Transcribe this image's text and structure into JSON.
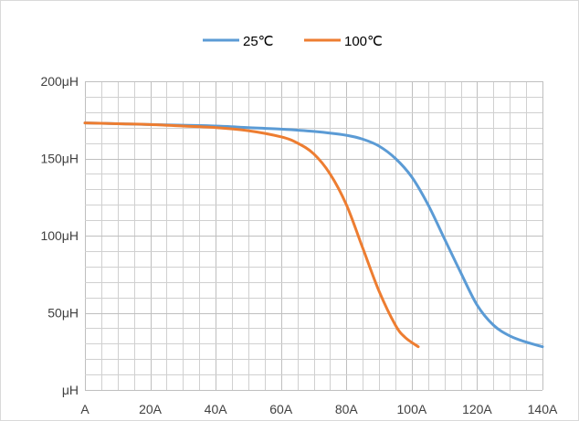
{
  "chart_data": {
    "type": "line",
    "title": "",
    "xlabel": "",
    "ylabel": "",
    "xlim": [
      0,
      140
    ],
    "ylim": [
      0,
      200
    ],
    "grid": true,
    "legend_position": "top",
    "x_ticks": [
      {
        "value": 0,
        "label": "A"
      },
      {
        "value": 20,
        "label": "20A"
      },
      {
        "value": 40,
        "label": "40A"
      },
      {
        "value": 60,
        "label": "60A"
      },
      {
        "value": 80,
        "label": "80A"
      },
      {
        "value": 100,
        "label": "100A"
      },
      {
        "value": 120,
        "label": "120A"
      },
      {
        "value": 140,
        "label": "140A"
      }
    ],
    "y_ticks": [
      {
        "value": 0,
        "label": "μH"
      },
      {
        "value": 50,
        "label": "50μH"
      },
      {
        "value": 100,
        "label": "100μH"
      },
      {
        "value": 150,
        "label": "150μH"
      },
      {
        "value": 200,
        "label": "200μH"
      }
    ],
    "series": [
      {
        "name": "25℃",
        "color": "#5b9bd5",
        "points": [
          [
            0,
            173
          ],
          [
            10,
            172.5
          ],
          [
            20,
            172
          ],
          [
            30,
            171.5
          ],
          [
            40,
            171
          ],
          [
            50,
            170
          ],
          [
            60,
            169
          ],
          [
            70,
            167.5
          ],
          [
            80,
            165
          ],
          [
            85,
            162.5
          ],
          [
            90,
            158
          ],
          [
            95,
            150
          ],
          [
            100,
            138
          ],
          [
            105,
            120
          ],
          [
            110,
            98
          ],
          [
            115,
            76
          ],
          [
            120,
            55
          ],
          [
            125,
            42
          ],
          [
            130,
            35
          ],
          [
            135,
            31
          ],
          [
            140,
            28
          ]
        ]
      },
      {
        "name": "100℃",
        "color": "#ed7d31",
        "points": [
          [
            0,
            173
          ],
          [
            10,
            172.5
          ],
          [
            20,
            172
          ],
          [
            30,
            171
          ],
          [
            40,
            170
          ],
          [
            50,
            168
          ],
          [
            60,
            164
          ],
          [
            65,
            160
          ],
          [
            70,
            153
          ],
          [
            75,
            140
          ],
          [
            80,
            120
          ],
          [
            85,
            92
          ],
          [
            90,
            64
          ],
          [
            95,
            42
          ],
          [
            98,
            34
          ],
          [
            102,
            28
          ]
        ]
      }
    ]
  }
}
